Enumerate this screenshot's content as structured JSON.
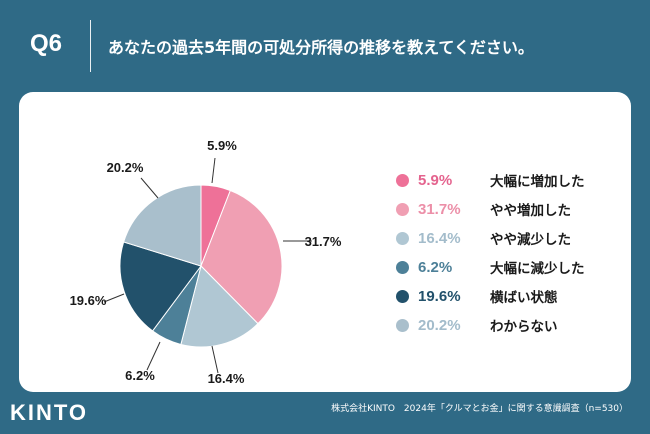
{
  "header": {
    "question_number": "Q6",
    "question_text": "あなたの過去5年間の可処分所得の推移を教えてください。"
  },
  "chart_data": {
    "type": "pie",
    "slices": [
      {
        "label": "大幅に増加した",
        "value": 5.9,
        "display": "5.9%",
        "color": "#ee7198"
      },
      {
        "label": "やや増加した",
        "value": 31.7,
        "display": "31.7%",
        "color": "#f09fb3"
      },
      {
        "label": "やや減少した",
        "value": 16.4,
        "display": "16.4%",
        "color": "#b0c7d3"
      },
      {
        "label": "大幅に減少した",
        "value": 6.2,
        "display": "6.2%",
        "color": "#4d8098"
      },
      {
        "label": "横ばい状態",
        "value": 19.6,
        "display": "19.6%",
        "color": "#22516b"
      },
      {
        "label": "わからない",
        "value": 20.2,
        "display": "20.2%",
        "color": "#a9bfcc"
      }
    ]
  },
  "legend": {
    "pct_colors": [
      "#e4638e",
      "#ec8fa8",
      "#a3bccb",
      "#4d8098",
      "#22516b",
      "#a3bccb"
    ]
  },
  "footer": {
    "source": "株式会社KINTO　2024年「クルマとお金」に関する意識調査（n=530）",
    "logo": "KINTO"
  },
  "colors": {
    "background": "#2f6a86",
    "card": "#ffffff"
  }
}
